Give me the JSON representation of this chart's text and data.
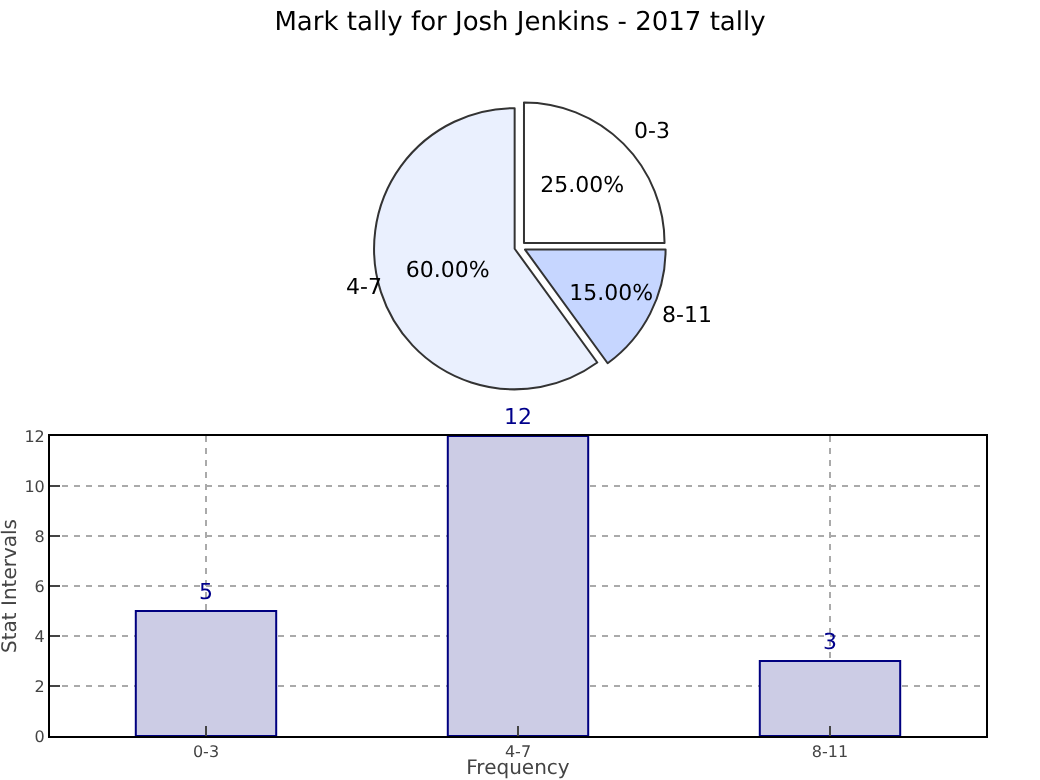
{
  "chart_data": [
    {
      "type": "pie",
      "title": "Mark tally for Josh Jenkins - 2017 tally",
      "categories": [
        "0-3",
        "8-11",
        "4-7"
      ],
      "values": [
        25,
        15,
        60
      ],
      "value_labels": [
        "25.00%",
        "15.00%",
        "60.00%"
      ],
      "colors": [
        "#ffffff",
        "#c6d6ff",
        "#eaf0fe"
      ],
      "legend": false
    },
    {
      "type": "bar",
      "categories": [
        "0-3",
        "4-7",
        "8-11"
      ],
      "values": [
        5,
        12,
        3
      ],
      "color": "#ccccE5",
      "xlabel": "Frequency",
      "ylabel": "Stat Intervals",
      "ylim": [
        0,
        12
      ],
      "yticks": [
        0,
        2,
        4,
        6,
        8,
        10,
        12
      ],
      "grid": true,
      "data_labels": true
    }
  ]
}
